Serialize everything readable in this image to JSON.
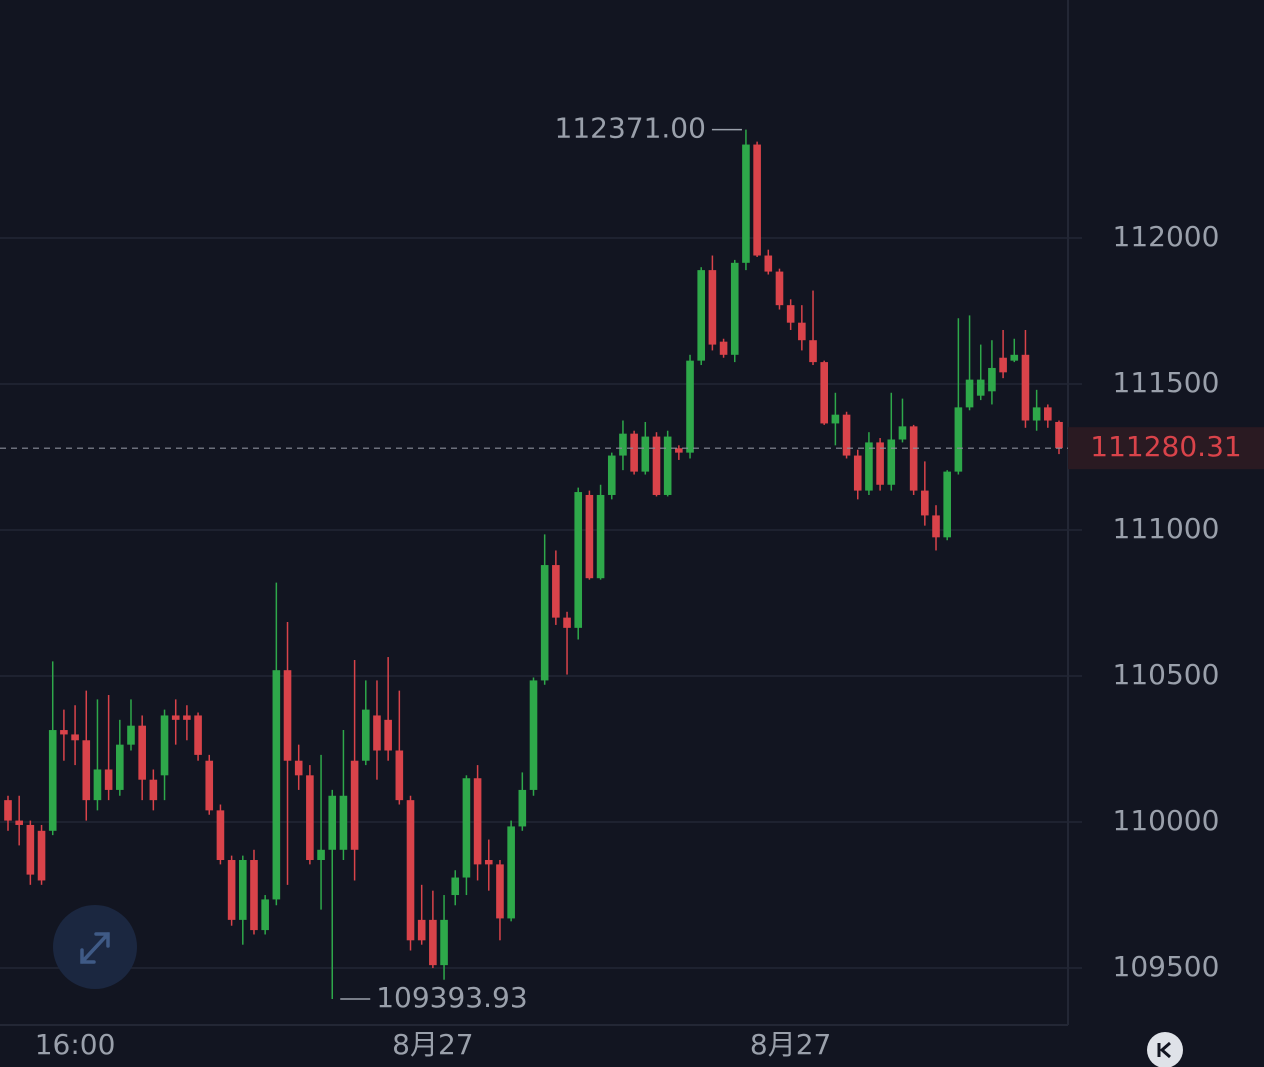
{
  "chart_data": {
    "type": "candlestick",
    "categories": [
      null,
      null,
      null,
      null,
      null,
      null,
      "16:00",
      null,
      null,
      null,
      null,
      null,
      null,
      null,
      null,
      null,
      null,
      null,
      null,
      null,
      null,
      null,
      null,
      null,
      null,
      null,
      null,
      null,
      null,
      null,
      null,
      null,
      null,
      null,
      null,
      null,
      null,
      null,
      "8月27",
      null,
      null,
      null,
      null,
      null,
      null,
      null,
      null,
      null,
      null,
      null,
      null,
      null,
      null,
      null,
      null,
      null,
      null,
      null,
      null,
      null,
      null,
      null,
      null,
      null,
      null,
      null,
      null,
      null,
      null,
      null,
      "8月27",
      null,
      null,
      null,
      null,
      null,
      null,
      null,
      null,
      null,
      null,
      null,
      null,
      null,
      null,
      null,
      null,
      null,
      null,
      null,
      null,
      null,
      null,
      null,
      null
    ],
    "open": [
      110075,
      110005,
      109990,
      109970,
      109970,
      110315,
      110300,
      110280,
      110075,
      110180,
      110110,
      110265,
      110330,
      110145,
      110160,
      110365,
      110365,
      110365,
      110210,
      110040,
      109870,
      109665,
      109870,
      109630,
      109735,
      110520,
      110210,
      110160,
      109870,
      109905,
      109905,
      110210,
      110210,
      110365,
      110350,
      110245,
      110075,
      109665,
      109665,
      109510,
      109750,
      109810,
      110150,
      109870,
      109855,
      109670,
      109985,
      110110,
      110485,
      110880,
      110700,
      110665,
      111120,
      110835,
      111120,
      111255,
      111330,
      111200,
      111320,
      111120,
      111280,
      111265,
      111580,
      111890,
      111645,
      111600,
      111915,
      112320,
      111940,
      111885,
      111770,
      111710,
      111650,
      111575,
      111365,
      111395,
      111255,
      111135,
      111300,
      111155,
      111310,
      111355,
      111135,
      111050,
      110975,
      111200,
      111420,
      111460,
      111475,
      111590,
      111580,
      111600,
      111375,
      111420,
      111370
    ],
    "high": [
      110090,
      110090,
      110005,
      109990,
      110550,
      110385,
      110400,
      110450,
      110420,
      110435,
      110350,
      110420,
      110365,
      110180,
      110385,
      110420,
      110400,
      110375,
      110230,
      110060,
      109885,
      109885,
      109905,
      109750,
      110820,
      110685,
      110265,
      110195,
      110230,
      110110,
      110315,
      110555,
      110485,
      110485,
      110565,
      110450,
      110090,
      109785,
      109765,
      109750,
      109835,
      110160,
      110195,
      109940,
      109870,
      110005,
      110170,
      110495,
      110985,
      110930,
      110720,
      111145,
      111135,
      111155,
      111265,
      111375,
      111340,
      111370,
      111335,
      111340,
      111290,
      111600,
      111900,
      111940,
      111655,
      111925,
      112371,
      112330,
      111960,
      111895,
      111790,
      111770,
      111820,
      111580,
      111470,
      111405,
      111275,
      111335,
      111315,
      111470,
      111450,
      111360,
      111235,
      111085,
      111205,
      111725,
      111735,
      111635,
      111650,
      111685,
      111655,
      111685,
      111480,
      111430,
      111375
    ],
    "low": [
      109970,
      109920,
      109785,
      109785,
      109955,
      110210,
      110195,
      110005,
      110040,
      110075,
      110090,
      110245,
      110075,
      110040,
      110075,
      110265,
      110280,
      110210,
      110025,
      109855,
      109645,
      109580,
      109615,
      109615,
      109715,
      109785,
      110110,
      109855,
      109700,
      109393.93,
      109870,
      109800,
      110195,
      110145,
      110210,
      110060,
      109560,
      109580,
      109500,
      109460,
      109715,
      109750,
      109800,
      109765,
      109595,
      109660,
      109970,
      110090,
      110470,
      110675,
      110505,
      110625,
      110830,
      110830,
      111105,
      111205,
      111190,
      111190,
      111115,
      111115,
      111240,
      111245,
      111565,
      111615,
      111590,
      111575,
      111890,
      111935,
      111875,
      111755,
      111685,
      111615,
      111565,
      111360,
      111290,
      111245,
      111105,
      111120,
      111135,
      111135,
      111300,
      111120,
      111015,
      110930,
      110965,
      111190,
      111410,
      111445,
      111430,
      111520,
      111575,
      111350,
      111340,
      111350,
      111260
    ],
    "close": [
      110005,
      109990,
      109820,
      109800,
      110315,
      110300,
      110280,
      110075,
      110180,
      110110,
      110265,
      110330,
      110145,
      110075,
      110365,
      110350,
      110350,
      110230,
      110040,
      109870,
      109665,
      109870,
      109630,
      109735,
      110520,
      110210,
      110160,
      109870,
      109905,
      110090,
      110090,
      109905,
      110385,
      110245,
      110245,
      110075,
      109595,
      109595,
      109510,
      109665,
      109810,
      110150,
      109855,
      109855,
      109670,
      109985,
      110110,
      110485,
      110880,
      110700,
      110665,
      111130,
      110835,
      111120,
      111255,
      111330,
      111200,
      111320,
      111120,
      111320,
      111265,
      111580,
      111890,
      111635,
      111600,
      111915,
      112320,
      111940,
      111885,
      111770,
      111710,
      111650,
      111575,
      111365,
      111395,
      111255,
      111135,
      111300,
      111155,
      111310,
      111355,
      111135,
      111050,
      110975,
      111200,
      111420,
      111515,
      111515,
      111555,
      111540,
      111600,
      111375,
      111420,
      111375,
      111280.31
    ],
    "up_color": "#2ea84a",
    "down_color": "#d9434a",
    "ylim": [
      109305,
      112815
    ],
    "yticks": [
      109500,
      110000,
      110500,
      111000,
      111500,
      112000
    ],
    "grid": true,
    "high_label": {
      "value": 112371,
      "label": "112371.00"
    },
    "low_label": {
      "value": 109393.93,
      "label": "109393.93"
    },
    "last_price": 111280.31
  }
}
